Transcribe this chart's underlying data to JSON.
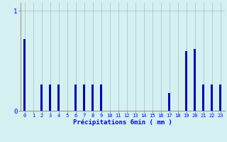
{
  "xlabel": "Précipitations 6min ( mm )",
  "background_color": "#d4f0f0",
  "bar_color": "#0000bb",
  "grid_color": "#aabbcc",
  "xlim": [
    -0.5,
    23.5
  ],
  "ylim": [
    0,
    1.08
  ],
  "yticks": [
    0,
    1
  ],
  "xticks": [
    0,
    1,
    2,
    3,
    4,
    5,
    6,
    7,
    8,
    9,
    10,
    11,
    12,
    13,
    14,
    15,
    16,
    17,
    18,
    19,
    20,
    21,
    22,
    23
  ],
  "values": [
    0.72,
    0.0,
    0.26,
    0.26,
    0.26,
    0.0,
    0.26,
    0.26,
    0.26,
    0.26,
    0.0,
    0.0,
    0.0,
    0.0,
    0.0,
    0.0,
    0.0,
    0.18,
    0.0,
    0.6,
    0.62,
    0.26,
    0.26,
    0.26
  ],
  "bar_width": 0.25,
  "figsize": [
    3.2,
    2.0
  ],
  "dpi": 100
}
